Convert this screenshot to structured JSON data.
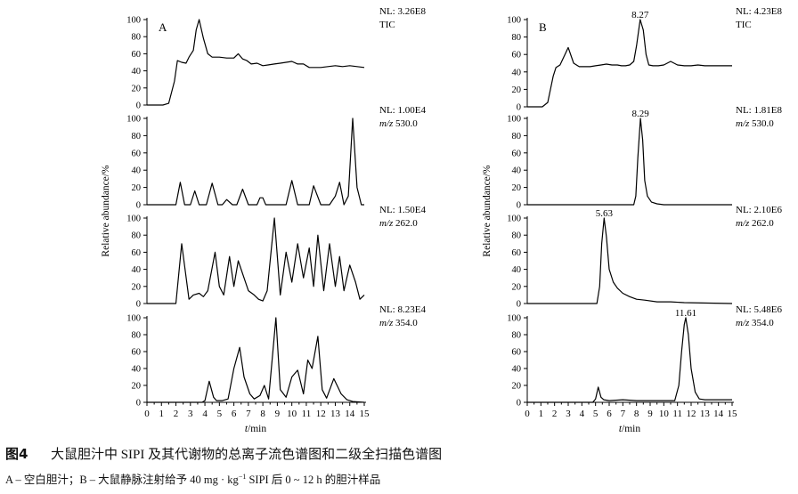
{
  "figure": {
    "title_label": "图4",
    "title_text": "大鼠胆汁中 SIPI 及其代谢物的总离子流色谱图和二级全扫描色谱图",
    "legend_part1": "A – 空白胆汁；B – 大鼠静脉注射给予 40 mg · kg",
    "legend_sup": "−1",
    "legend_part2": " SIPI 后 0 ~ 12 h 的胆汁样品"
  },
  "chart_data": [
    {
      "type": "line",
      "panel": "A",
      "xlabel": "t/min",
      "ylabel": "Relative abundance/%",
      "xlim": [
        0,
        15
      ],
      "xticks": [
        "0",
        "1",
        "2",
        "3",
        "4",
        "5",
        "6",
        "7",
        "8",
        "9",
        "10",
        "11",
        "12",
        "13",
        "14",
        "15"
      ],
      "yticks": [
        "0",
        "20",
        "40",
        "60",
        "80",
        "100"
      ],
      "traces": [
        {
          "nl": "NL: 3.26E8",
          "mz": "TIC",
          "mz_prefix": "",
          "peak_label": "",
          "ylim": [
            0,
            100
          ],
          "x": [
            0,
            1.1,
            1.5,
            1.9,
            2.1,
            2.4,
            2.7,
            2.9,
            3.2,
            3.4,
            3.6,
            3.9,
            4.2,
            4.5,
            5.0,
            5.5,
            6.0,
            6.3,
            6.6,
            6.9,
            7.2,
            7.6,
            8.0,
            8.4,
            8.8,
            9.2,
            9.6,
            10.0,
            10.4,
            10.8,
            11.2,
            11.6,
            12.0,
            12.5,
            13.0,
            13.5,
            14.0,
            14.5,
            15.0
          ],
          "y": [
            0,
            0,
            2,
            28,
            52,
            50,
            49,
            56,
            64,
            88,
            100,
            78,
            60,
            56,
            56,
            55,
            55,
            60,
            54,
            52,
            48,
            49,
            46,
            47,
            48,
            49,
            50,
            51,
            48,
            48,
            44,
            44,
            44,
            45,
            46,
            45,
            46,
            45,
            44
          ]
        },
        {
          "nl": "NL: 1.00E4",
          "mz": "530.0",
          "mz_prefix": "m/z",
          "peak_label": "",
          "ylim": [
            0,
            100
          ],
          "x": [
            0,
            2.0,
            2.3,
            2.6,
            3.0,
            3.3,
            3.6,
            4.1,
            4.5,
            4.9,
            5.2,
            5.5,
            5.9,
            6.2,
            6.6,
            7.0,
            7.6,
            7.8,
            8.0,
            8.2,
            9.0,
            9.6,
            10.0,
            10.4,
            10.8,
            11.2,
            11.5,
            12.0,
            12.3,
            12.6,
            13.0,
            13.3,
            13.6,
            13.9,
            14.2,
            14.5,
            14.8,
            15.0
          ],
          "y": [
            0,
            0,
            26,
            0,
            0,
            16,
            0,
            0,
            25,
            0,
            0,
            6,
            0,
            0,
            18,
            0,
            0,
            8,
            8,
            0,
            0,
            0,
            28,
            0,
            0,
            0,
            22,
            0,
            0,
            0,
            10,
            26,
            0,
            10,
            100,
            20,
            0,
            0
          ]
        },
        {
          "nl": "NL: 1.50E4",
          "mz": "262.0",
          "mz_prefix": "m/z",
          "peak_label": "",
          "ylim": [
            0,
            100
          ],
          "x": [
            0,
            2.0,
            2.4,
            2.9,
            3.2,
            3.6,
            3.9,
            4.2,
            4.7,
            5.0,
            5.3,
            5.7,
            6.0,
            6.3,
            6.7,
            7.0,
            7.4,
            7.7,
            8.0,
            8.3,
            8.8,
            9.2,
            9.6,
            10.0,
            10.4,
            10.8,
            11.2,
            11.5,
            11.8,
            12.2,
            12.6,
            13.0,
            13.3,
            13.6,
            14.0,
            14.4,
            14.7,
            15.0
          ],
          "y": [
            0,
            0,
            70,
            5,
            10,
            12,
            8,
            15,
            60,
            20,
            10,
            55,
            20,
            50,
            30,
            15,
            10,
            5,
            3,
            15,
            100,
            10,
            60,
            25,
            70,
            30,
            65,
            20,
            80,
            15,
            70,
            20,
            55,
            15,
            45,
            25,
            5,
            10
          ]
        },
        {
          "nl": "NL: 8.23E4",
          "mz": "354.0",
          "mz_prefix": "m/z",
          "peak_label": "",
          "ylim": [
            0,
            100
          ],
          "x": [
            0,
            3.8,
            4.0,
            4.3,
            4.6,
            4.8,
            5.2,
            5.6,
            6.0,
            6.4,
            6.7,
            7.1,
            7.4,
            7.8,
            8.1,
            8.4,
            8.9,
            9.2,
            9.6,
            10.0,
            10.4,
            10.8,
            11.1,
            11.4,
            11.8,
            12.1,
            12.4,
            12.9,
            13.4,
            13.8,
            14.2,
            15.0
          ],
          "y": [
            0,
            0,
            2,
            25,
            6,
            2,
            2,
            4,
            40,
            65,
            30,
            10,
            4,
            8,
            20,
            4,
            100,
            15,
            6,
            30,
            38,
            10,
            50,
            40,
            78,
            15,
            5,
            28,
            10,
            3,
            1,
            0
          ]
        }
      ]
    },
    {
      "type": "line",
      "panel": "B",
      "xlabel": "t/min",
      "ylabel": "Relative abundance/%",
      "xlim": [
        0,
        15
      ],
      "xticks": [
        "0",
        "1",
        "2",
        "3",
        "4",
        "5",
        "6",
        "7",
        "8",
        "9",
        "10",
        "11",
        "12",
        "13",
        "14",
        "15"
      ],
      "yticks": [
        "0",
        "20",
        "40",
        "60",
        "80",
        "100"
      ],
      "traces": [
        {
          "nl": "NL: 4.23E8",
          "mz": "TIC",
          "mz_prefix": "",
          "peak_label": "8.27",
          "peak_x": 8.27,
          "ylim": [
            0,
            100
          ],
          "x": [
            0,
            1.1,
            1.5,
            1.9,
            2.1,
            2.4,
            2.7,
            3.0,
            3.4,
            3.8,
            4.2,
            4.6,
            5.0,
            5.4,
            5.8,
            6.2,
            6.6,
            6.9,
            7.2,
            7.5,
            7.8,
            8.0,
            8.27,
            8.5,
            8.7,
            8.9,
            9.2,
            9.6,
            10.0,
            10.5,
            11.0,
            11.5,
            12.0,
            12.5,
            13.0,
            14.0,
            15.0
          ],
          "y": [
            0,
            0,
            5,
            35,
            45,
            48,
            58,
            68,
            50,
            46,
            46,
            46,
            47,
            48,
            49,
            48,
            48,
            47,
            47,
            48,
            52,
            70,
            100,
            88,
            60,
            48,
            47,
            47,
            48,
            52,
            48,
            47,
            47,
            48,
            47,
            47,
            47
          ]
        },
        {
          "nl": "NL: 1.81E8",
          "mz": "530.0",
          "mz_prefix": "m/z",
          "peak_label": "8.29",
          "peak_x": 8.29,
          "ylim": [
            0,
            100
          ],
          "x": [
            0,
            7.8,
            7.95,
            8.1,
            8.29,
            8.45,
            8.6,
            8.8,
            9.1,
            9.5,
            10.0,
            15.0
          ],
          "y": [
            0,
            0,
            10,
            55,
            100,
            75,
            28,
            10,
            3,
            1,
            0,
            0
          ]
        },
        {
          "nl": "NL: 2.10E6",
          "mz": "262.0",
          "mz_prefix": "m/z",
          "peak_label": "5.63",
          "peak_x": 5.63,
          "ylim": [
            0,
            100
          ],
          "x": [
            0,
            5.1,
            5.3,
            5.45,
            5.63,
            5.8,
            6.0,
            6.3,
            6.6,
            7.0,
            7.5,
            8.0,
            8.6,
            9.5,
            10.5,
            11.5,
            15.0
          ],
          "y": [
            0,
            0,
            20,
            70,
            100,
            78,
            40,
            25,
            18,
            12,
            8,
            5,
            4,
            2,
            2,
            1,
            0
          ]
        },
        {
          "nl": "NL: 5.48E6",
          "mz": "354.0",
          "mz_prefix": "m/z",
          "peak_label": "11.61",
          "peak_x": 11.61,
          "ylim": [
            0,
            100
          ],
          "x": [
            0,
            4.8,
            5.0,
            5.2,
            5.4,
            5.6,
            6.0,
            7.0,
            8.0,
            9.0,
            10.0,
            10.8,
            11.1,
            11.3,
            11.5,
            11.61,
            11.8,
            12.0,
            12.3,
            12.6,
            13.0,
            14.0,
            15.0
          ],
          "y": [
            0,
            0,
            4,
            18,
            6,
            3,
            2,
            3,
            2,
            2,
            2,
            2,
            20,
            60,
            92,
            100,
            80,
            40,
            12,
            4,
            3,
            3,
            3
          ]
        }
      ]
    }
  ]
}
